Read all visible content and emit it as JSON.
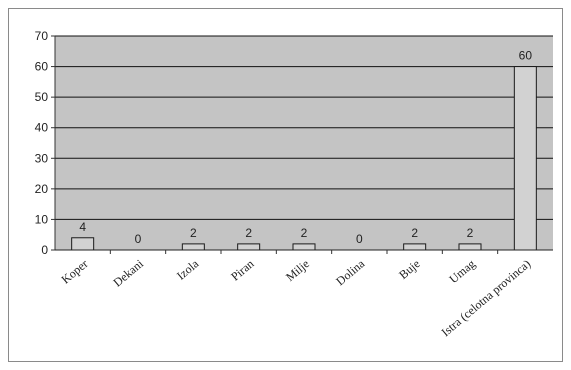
{
  "chart_data": {
    "type": "bar",
    "title": "",
    "xlabel": "",
    "ylabel": "",
    "categories": [
      "Koper",
      "Dekani",
      "Izola",
      "Piran",
      "Milje",
      "Dolina",
      "Buje",
      "Umag",
      "Istra (celotna provinca)"
    ],
    "values": [
      4,
      0,
      2,
      2,
      2,
      0,
      2,
      2,
      60
    ],
    "data_labels": [
      "4",
      "0",
      "2",
      "2",
      "2",
      "0",
      "2",
      "2",
      "60"
    ],
    "ylim": [
      0,
      70
    ],
    "yticks": [
      0,
      10,
      20,
      30,
      40,
      50,
      60,
      70
    ],
    "grid": true,
    "legend": "none",
    "colors": {
      "plot_background": "#c4c4c4",
      "bar_fill": "#d2d2d2",
      "bar_stroke": "#1a1a1a",
      "gridline": "#111111",
      "frame": "#8a8a8a"
    }
  }
}
